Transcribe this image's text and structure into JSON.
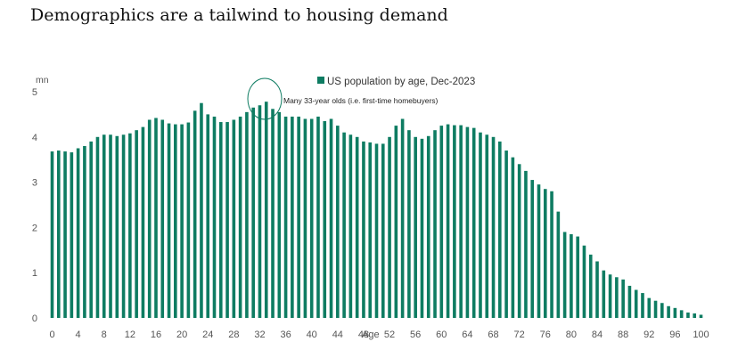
{
  "title": "Demographics are a tailwind to housing demand",
  "chart_data": {
    "type": "bar",
    "title": "",
    "unit_label": "mn",
    "xlabel": "Age",
    "ylabel": "",
    "ylim": [
      0,
      5
    ],
    "yticks": [
      0,
      1,
      2,
      3,
      4,
      5
    ],
    "xticks": [
      "0",
      "4",
      "8",
      "12",
      "16",
      "20",
      "24",
      "28",
      "32",
      "36",
      "40",
      "44",
      "48",
      "52",
      "56",
      "60",
      "64",
      "68",
      "72",
      "76",
      "80",
      "84",
      "88",
      "92",
      "96",
      "100"
    ],
    "legend_position": "top",
    "grid": false,
    "color": "#0e7c62",
    "series": [
      {
        "name": "US population by age, Dec-2023",
        "values": [
          3.68,
          3.7,
          3.68,
          3.66,
          3.75,
          3.8,
          3.9,
          4.0,
          4.05,
          4.05,
          4.02,
          4.05,
          4.08,
          4.15,
          4.22,
          4.38,
          4.42,
          4.38,
          4.3,
          4.28,
          4.28,
          4.32,
          4.58,
          4.75,
          4.5,
          4.45,
          4.33,
          4.33,
          4.38,
          4.45,
          4.55,
          4.65,
          4.7,
          4.78,
          4.62,
          4.55,
          4.45,
          4.45,
          4.45,
          4.4,
          4.4,
          4.45,
          4.35,
          4.4,
          4.25,
          4.1,
          4.05,
          4.0,
          3.9,
          3.88,
          3.85,
          3.85,
          4.0,
          4.25,
          4.4,
          4.15,
          4.0,
          3.96,
          4.02,
          4.15,
          4.25,
          4.28,
          4.26,
          4.26,
          4.22,
          4.2,
          4.1,
          4.05,
          4.0,
          3.9,
          3.7,
          3.55,
          3.4,
          3.25,
          3.05,
          2.95,
          2.85,
          2.8,
          2.35,
          1.9,
          1.85,
          1.8,
          1.6,
          1.4,
          1.25,
          1.05,
          0.96,
          0.9,
          0.85,
          0.71,
          0.62,
          0.55,
          0.44,
          0.38,
          0.33,
          0.26,
          0.22,
          0.17,
          0.12,
          0.1,
          0.07
        ]
      }
    ],
    "annotations": [
      {
        "text": "Many 33-year olds (i.e. first-time homebuyers)",
        "x": 33
      }
    ]
  }
}
